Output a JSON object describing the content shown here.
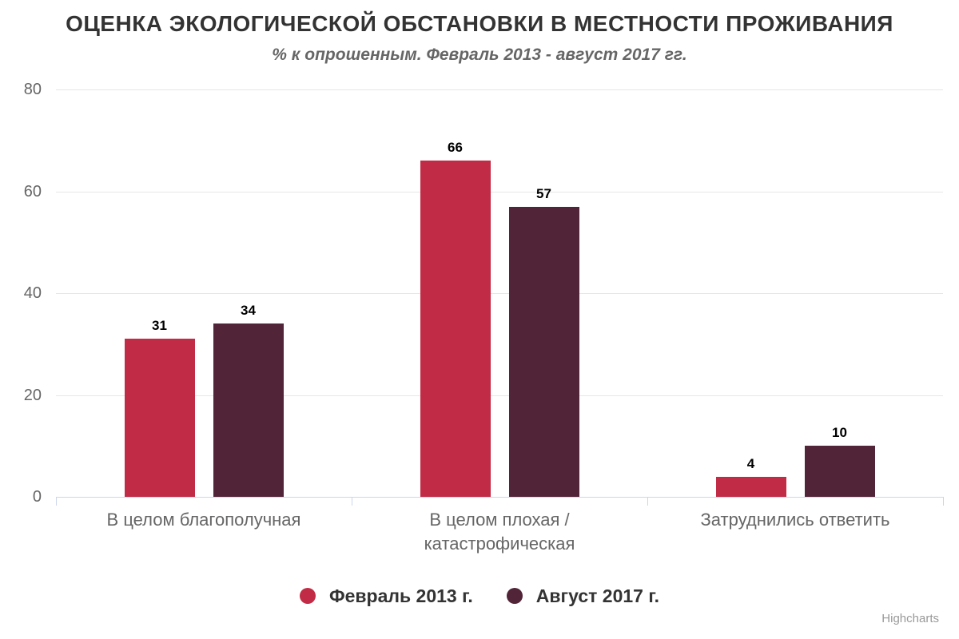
{
  "chart_data": {
    "type": "bar",
    "title": "ОЦЕНКА ЭКОЛОГИЧЕСКОЙ ОБСТАНОВКИ В МЕСТНОСТИ ПРОЖИВАНИЯ",
    "subtitle": "% к опрошенным. Февраль 2013 - август 2017 гг.",
    "categories": [
      "В целом благополучная",
      "В целом плохая / катастрофическая",
      "Затруднились ответить"
    ],
    "category_display_lines": [
      [
        "В целом благополучная"
      ],
      [
        "В целом плохая /",
        "катастрофическая"
      ],
      [
        "Затруднились ответить"
      ]
    ],
    "series": [
      {
        "name": "Февраль 2013 г.",
        "color": "#C22B45",
        "values": [
          31,
          66,
          4
        ]
      },
      {
        "name": "Август 2017 г.",
        "color": "#522437",
        "values": [
          34,
          57,
          10
        ]
      }
    ],
    "xlabel": "",
    "ylabel": "",
    "ylim": [
      0,
      80
    ],
    "yticks": [
      0,
      20,
      40,
      60,
      80
    ],
    "grid": true,
    "data_labels": true,
    "legend_position": "bottom"
  },
  "colors": {
    "background": "#FFFFFF",
    "grid": "#E6E6E6",
    "axis_line": "#CCD6EB",
    "title": "#333333",
    "subtitle": "#666666",
    "axis_label": "#666666",
    "category_label": "#666666",
    "data_label": "#000000",
    "legend_text": "#333333",
    "credits": "#999999"
  },
  "credits": {
    "text": "Highcharts"
  }
}
